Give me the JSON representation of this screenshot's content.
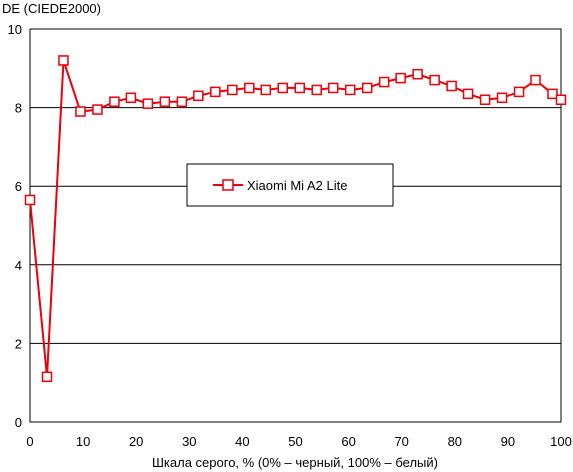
{
  "chart_data": {
    "type": "line",
    "ylabel": "DE (CIEDE2000)",
    "xlabel": "Шкала серого, % (0% – черный, 100% – белый)",
    "xlim": [
      0,
      100
    ],
    "ylim": [
      0,
      10
    ],
    "x_ticks": [
      "0",
      "10",
      "20",
      "30",
      "40",
      "50",
      "60",
      "70",
      "80",
      "90",
      "100"
    ],
    "y_ticks": [
      "0",
      "2",
      "4",
      "6",
      "8",
      "10"
    ],
    "grid": "horizontal",
    "legend_position": "center-left",
    "series": [
      {
        "name": "Xiaomi Mi A2 Lite",
        "color": "#e8000b",
        "marker": "square-open",
        "x": [
          0,
          3.2,
          6.3,
          9.5,
          12.7,
          15.9,
          19,
          22.2,
          25.4,
          28.6,
          31.7,
          34.9,
          38.1,
          41.3,
          44.4,
          47.6,
          50.8,
          54,
          57.1,
          60.3,
          63.5,
          66.7,
          69.8,
          73,
          76.2,
          79.4,
          82.5,
          85.7,
          88.9,
          92.1,
          95.2,
          98.4,
          100
        ],
        "y": [
          5.65,
          1.15,
          9.2,
          7.9,
          7.95,
          8.15,
          8.25,
          8.1,
          8.15,
          8.15,
          8.3,
          8.4,
          8.45,
          8.5,
          8.45,
          8.5,
          8.5,
          8.45,
          8.5,
          8.45,
          8.5,
          8.65,
          8.75,
          8.85,
          8.7,
          8.55,
          8.35,
          8.2,
          8.25,
          8.4,
          8.7,
          8.35,
          8.2
        ]
      }
    ]
  }
}
